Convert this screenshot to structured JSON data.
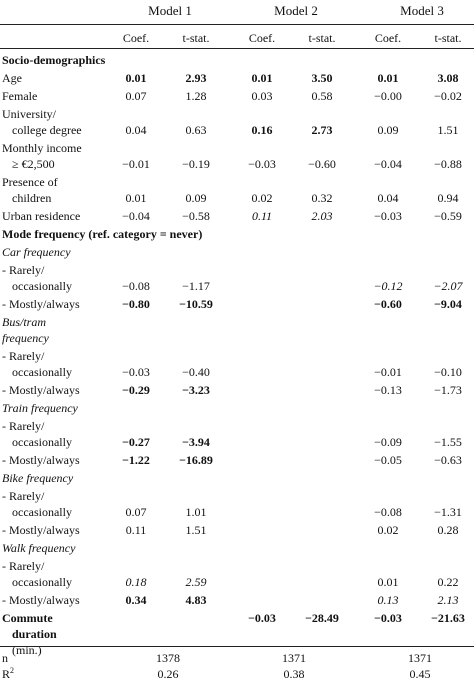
{
  "models": [
    "Model 1",
    "Model 2",
    "Model 3"
  ],
  "subheaders": [
    "Coef.",
    "t-stat."
  ],
  "rows": [
    {
      "label": [
        "Socio-demographics"
      ],
      "style": "section"
    },
    {
      "label": [
        "Age"
      ],
      "cells": [
        [
          "0.01",
          "b"
        ],
        [
          "2.93",
          "b"
        ],
        [
          "0.01",
          "b"
        ],
        [
          "3.50",
          "b"
        ],
        [
          "0.01",
          "b"
        ],
        [
          "3.08",
          "b"
        ]
      ]
    },
    {
      "label": [
        "Female"
      ],
      "cells": [
        [
          "0.07",
          ""
        ],
        [
          "1.28",
          ""
        ],
        [
          "0.03",
          ""
        ],
        [
          "0.58",
          ""
        ],
        [
          "−0.00",
          ""
        ],
        [
          "−0.02",
          ""
        ]
      ]
    },
    {
      "label": [
        "University/",
        "college degree"
      ],
      "cells": [
        [
          "0.04",
          ""
        ],
        [
          "0.63",
          ""
        ],
        [
          "0.16",
          "b"
        ],
        [
          "2.73",
          "b"
        ],
        [
          "0.09",
          ""
        ],
        [
          "1.51",
          ""
        ]
      ]
    },
    {
      "label": [
        "Monthly income",
        "≥ €2,500"
      ],
      "cells": [
        [
          "−0.01",
          ""
        ],
        [
          "−0.19",
          ""
        ],
        [
          "−0.03",
          ""
        ],
        [
          "−0.60",
          ""
        ],
        [
          "−0.04",
          ""
        ],
        [
          "−0.88",
          ""
        ]
      ]
    },
    {
      "label": [
        "Presence of",
        "children"
      ],
      "cells": [
        [
          "0.01",
          ""
        ],
        [
          "0.09",
          ""
        ],
        [
          "0.02",
          ""
        ],
        [
          "0.32",
          ""
        ],
        [
          "0.04",
          ""
        ],
        [
          "0.94",
          ""
        ]
      ]
    },
    {
      "label": [
        "Urban residence"
      ],
      "cells": [
        [
          "−0.04",
          ""
        ],
        [
          "−0.58",
          ""
        ],
        [
          "0.11",
          "i"
        ],
        [
          "2.03",
          "i"
        ],
        [
          "−0.03",
          ""
        ],
        [
          "−0.59",
          ""
        ]
      ]
    },
    {
      "label": [
        "Mode frequency (ref. category = never)"
      ],
      "style": "section"
    },
    {
      "label": [
        "Car frequency"
      ],
      "style": "subsection"
    },
    {
      "label": [
        "- Rarely/",
        "occasionally"
      ],
      "cells": [
        [
          "−0.08",
          ""
        ],
        [
          "−1.17",
          ""
        ],
        [
          "",
          ""
        ],
        [
          "",
          ""
        ],
        [
          "−0.12",
          "i"
        ],
        [
          "−2.07",
          "i"
        ]
      ]
    },
    {
      "label": [
        "- Mostly/always"
      ],
      "cells": [
        [
          "−0.80",
          "b"
        ],
        [
          "−10.59",
          "b"
        ],
        [
          "",
          ""
        ],
        [
          "",
          ""
        ],
        [
          "−0.60",
          "b"
        ],
        [
          "−9.04",
          "b"
        ]
      ]
    },
    {
      "label": [
        "Bus/tram",
        "frequency"
      ],
      "style": "subsection"
    },
    {
      "label": [
        "- Rarely/",
        "occasionally"
      ],
      "cells": [
        [
          "−0.03",
          ""
        ],
        [
          "−0.40",
          ""
        ],
        [
          "",
          ""
        ],
        [
          "",
          ""
        ],
        [
          "−0.01",
          ""
        ],
        [
          "−0.10",
          ""
        ]
      ]
    },
    {
      "label": [
        "- Mostly/always"
      ],
      "cells": [
        [
          "−0.29",
          "b"
        ],
        [
          "−3.23",
          "b"
        ],
        [
          "",
          ""
        ],
        [
          "",
          ""
        ],
        [
          "−0.13",
          ""
        ],
        [
          "−1.73",
          ""
        ]
      ]
    },
    {
      "label": [
        "Train frequency"
      ],
      "style": "subsection",
      "inline": true
    },
    {
      "label": [
        "- Rarely/",
        "occasionally"
      ],
      "cells": [
        [
          "−0.27",
          "b"
        ],
        [
          "−3.94",
          "b"
        ],
        [
          "",
          ""
        ],
        [
          "",
          ""
        ],
        [
          "−0.09",
          ""
        ],
        [
          "−1.55",
          ""
        ]
      ],
      "onSection": true
    },
    {
      "label": [
        "- Mostly/always"
      ],
      "cells": [
        [
          "−1.22",
          "b"
        ],
        [
          "−16.89",
          "b"
        ],
        [
          "",
          ""
        ],
        [
          "",
          ""
        ],
        [
          "−0.05",
          ""
        ],
        [
          "−0.63",
          ""
        ]
      ]
    },
    {
      "label": [
        "Bike frequency"
      ],
      "style": "subsection"
    },
    {
      "label": [
        "- Rarely/",
        "occasionally"
      ],
      "cells": [
        [
          "0.07",
          ""
        ],
        [
          "1.01",
          ""
        ],
        [
          "",
          ""
        ],
        [
          "",
          ""
        ],
        [
          "−0.08",
          ""
        ],
        [
          "−1.31",
          ""
        ]
      ]
    },
    {
      "label": [
        "- Mostly/always"
      ],
      "cells": [
        [
          "0.11",
          ""
        ],
        [
          "1.51",
          ""
        ],
        [
          "",
          ""
        ],
        [
          "",
          ""
        ],
        [
          "0.02",
          ""
        ],
        [
          "0.28",
          ""
        ]
      ]
    },
    {
      "label": [
        "Walk frequency"
      ],
      "style": "subsection"
    },
    {
      "label": [
        "- Rarely/",
        "occasionally"
      ],
      "cells": [
        [
          "0.18",
          "i"
        ],
        [
          "2.59",
          "i"
        ],
        [
          "",
          ""
        ],
        [
          "",
          ""
        ],
        [
          "0.01",
          ""
        ],
        [
          "0.22",
          ""
        ]
      ]
    },
    {
      "label": [
        "- Mostly/always"
      ],
      "cells": [
        [
          "0.34",
          "b"
        ],
        [
          "4.83",
          "b"
        ],
        [
          "",
          ""
        ],
        [
          "",
          ""
        ],
        [
          "0.13",
          "i"
        ],
        [
          "2.13",
          "i"
        ]
      ]
    },
    {
      "label": [
        "Commute",
        "duration",
        "(min.)"
      ],
      "style": "commute",
      "cells": [
        [
          "",
          ""
        ],
        [
          "",
          ""
        ],
        [
          "−0.03",
          "b"
        ],
        [
          "−28.49",
          "b"
        ],
        [
          "−0.03",
          "b"
        ],
        [
          "−21.63",
          "b"
        ]
      ]
    }
  ],
  "footer": {
    "n_label": "n",
    "n_values": [
      "1378",
      "1371",
      "1371"
    ],
    "r2_label": "R",
    "r2_sup": "2",
    "r2_values": [
      "0.26",
      "0.38",
      "0.45"
    ]
  }
}
